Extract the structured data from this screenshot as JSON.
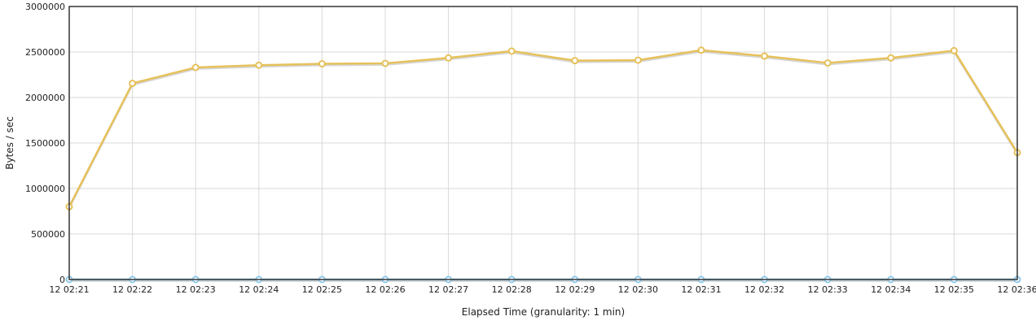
{
  "chart_data": {
    "type": "line",
    "xlabel": "Elapsed Time (granularity: 1 min)",
    "ylabel": "Bytes / sec",
    "ylim": [
      0,
      3000000
    ],
    "yticks": [
      "0",
      "500000",
      "1000000",
      "1500000",
      "2000000",
      "2500000",
      "3000000"
    ],
    "ytick_values": [
      0,
      500000,
      1000000,
      1500000,
      2000000,
      2500000,
      3000000
    ],
    "categories": [
      "12 02:21",
      "12 02:22",
      "12 02:23",
      "12 02:24",
      "12 02:25",
      "12 02:26",
      "12 02:27",
      "12 02:28",
      "12 02:29",
      "12 02:30",
      "12 02:31",
      "12 02:32",
      "12 02:33",
      "12 02:34",
      "12 02:35",
      "12 02:36"
    ],
    "grid": true,
    "series": [
      {
        "color": "#e6c15a",
        "values": [
          800000,
          2155000,
          2330000,
          2355000,
          2370000,
          2375000,
          2435000,
          2510000,
          2405000,
          2410000,
          2520000,
          2455000,
          2380000,
          2435000,
          2515000,
          1395000
        ]
      },
      {
        "color": "#8ec8e8",
        "values": [
          0,
          0,
          0,
          0,
          0,
          0,
          0,
          0,
          0,
          0,
          0,
          0,
          0,
          0,
          0,
          0
        ]
      }
    ]
  }
}
